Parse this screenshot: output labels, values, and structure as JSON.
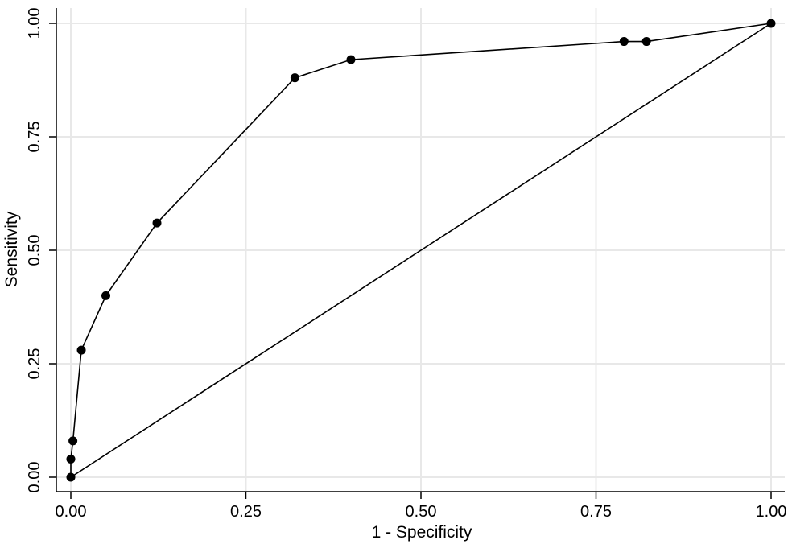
{
  "chart_data": {
    "type": "line",
    "title": "",
    "xlabel": "1 - Specificity",
    "ylabel": "Sensitivity",
    "xlim": [
      0,
      1
    ],
    "ylim": [
      0,
      1
    ],
    "grid": true,
    "x_ticks": [
      "0.00",
      "0.25",
      "0.50",
      "0.75",
      "1.00"
    ],
    "y_ticks": [
      "0.00",
      "0.25",
      "0.50",
      "0.75",
      "1.00"
    ],
    "series": [
      {
        "points": [
          [
            0.0,
            0.0
          ],
          [
            0.0,
            0.04
          ],
          [
            0.003,
            0.08
          ],
          [
            0.015,
            0.28
          ],
          [
            0.05,
            0.4
          ],
          [
            0.123,
            0.56
          ],
          [
            0.32,
            0.88
          ],
          [
            0.4,
            0.92
          ],
          [
            0.79,
            0.96
          ],
          [
            0.822,
            0.96
          ],
          [
            1.0,
            1.0
          ]
        ]
      },
      {
        "points": [
          [
            0,
            0
          ],
          [
            1,
            1
          ]
        ]
      }
    ]
  }
}
